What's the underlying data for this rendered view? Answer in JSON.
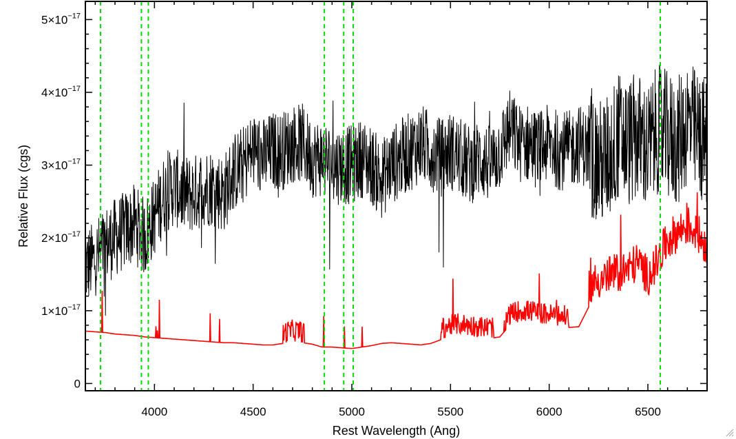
{
  "chart_data": {
    "type": "line",
    "title": "",
    "xlabel": "Rest Wavelength (Ang)",
    "ylabel": "Relative Flux (cgs)",
    "xlim": [
      3650,
      6800
    ],
    "ylim": [
      -1e-18,
      5.25e-17
    ],
    "x_ticks": [
      {
        "value": 4000,
        "label": "4000"
      },
      {
        "value": 4500,
        "label": "4500"
      },
      {
        "value": 5000,
        "label": "5000"
      },
      {
        "value": 5500,
        "label": "5500"
      },
      {
        "value": 6000,
        "label": "6000"
      },
      {
        "value": 6500,
        "label": "6500"
      }
    ],
    "y_ticks": [
      {
        "value": 0,
        "mantissa": "0",
        "exponent": ""
      },
      {
        "value": 1e-17,
        "mantissa": "1×10",
        "exponent": "−17"
      },
      {
        "value": 2e-17,
        "mantissa": "2×10",
        "exponent": "−17"
      },
      {
        "value": 3e-17,
        "mantissa": "3×10",
        "exponent": "−17"
      },
      {
        "value": 4e-17,
        "mantissa": "4×10",
        "exponent": "−17"
      },
      {
        "value": 5e-17,
        "mantissa": "5×10",
        "exponent": "−17"
      }
    ],
    "series": [
      {
        "color": "#000000",
        "x": [
          3650,
          3700,
          3750,
          3800,
          3850,
          3900,
          3950,
          4000,
          4050,
          4100,
          4150,
          4200,
          4250,
          4300,
          4350,
          4400,
          4450,
          4500,
          4550,
          4600,
          4650,
          4700,
          4750,
          4800,
          4850,
          4900,
          4950,
          5000,
          5050,
          5100,
          5150,
          5200,
          5250,
          5300,
          5350,
          5400,
          5450,
          5500,
          5550,
          5600,
          5650,
          5700,
          5750,
          5800,
          5850,
          5900,
          5950,
          6000,
          6050,
          6100,
          6150,
          6200,
          6250,
          6300,
          6350,
          6400,
          6450,
          6500,
          6550,
          6600,
          6650,
          6700,
          6750,
          6800
        ],
        "y": [
          1.6e-17,
          1.7e-17,
          1.9e-17,
          2e-17,
          2.1e-17,
          2.2e-17,
          2e-17,
          2.3e-17,
          2.6e-17,
          2.7e-17,
          2.6e-17,
          2.6e-17,
          2.7e-17,
          2.7e-17,
          2.6e-17,
          2.9e-17,
          3e-17,
          3.2e-17,
          3.1e-17,
          3.2e-17,
          3.2e-17,
          3.3e-17,
          3.3e-17,
          3.1e-17,
          3.1e-17,
          3e-17,
          3e-17,
          3e-17,
          3.1e-17,
          3e-17,
          2.8e-17,
          3e-17,
          3.1e-17,
          3.2e-17,
          3.3e-17,
          3.2e-17,
          3.1e-17,
          3.2e-17,
          3.1e-17,
          3e-17,
          3.1e-17,
          3e-17,
          3.2e-17,
          3.5e-17,
          3.3e-17,
          3.3e-17,
          3.2e-17,
          3.3e-17,
          3.2e-17,
          3.2e-17,
          3.3e-17,
          3.2e-17,
          3e-17,
          3.1e-17,
          3.4e-17,
          3.3e-17,
          3.4e-17,
          3.2e-17,
          3.5e-17,
          3.4e-17,
          3.3e-17,
          3.6e-17,
          3.4e-17,
          3.3e-17
        ]
      },
      {
        "color": "#ff0000",
        "x": [
          3650,
          3700,
          3750,
          3800,
          3850,
          3900,
          3950,
          4000,
          4050,
          4100,
          4150,
          4200,
          4250,
          4300,
          4350,
          4400,
          4450,
          4500,
          4550,
          4600,
          4650,
          4700,
          4750,
          4800,
          4850,
          4900,
          4950,
          5000,
          5050,
          5100,
          5150,
          5200,
          5250,
          5300,
          5350,
          5400,
          5450,
          5500,
          5550,
          5600,
          5650,
          5700,
          5750,
          5800,
          5850,
          5900,
          5950,
          6000,
          6050,
          6100,
          6150,
          6200,
          6250,
          6300,
          6350,
          6400,
          6450,
          6500,
          6550,
          6600,
          6650,
          6700,
          6750,
          6800
        ],
        "y": [
          7.2e-18,
          7.1e-18,
          7e-18,
          6.8e-18,
          6.7e-18,
          6.6e-18,
          6.4e-18,
          6.3e-18,
          6.2e-18,
          6.1e-18,
          6e-18,
          5.9e-18,
          5.8e-18,
          5.7e-18,
          5.6e-18,
          5.6e-18,
          5.5e-18,
          5.4e-18,
          5.3e-18,
          5.3e-18,
          5.5e-18,
          5.8e-18,
          5.6e-18,
          5.4e-18,
          5e-18,
          5e-18,
          4.9e-18,
          4.8e-18,
          5e-18,
          5.2e-18,
          5.5e-18,
          5.6e-18,
          5.5e-18,
          5.4e-18,
          5.3e-18,
          5.5e-18,
          6e-18,
          6.5e-18,
          6.7e-18,
          6.5e-18,
          6.3e-18,
          6.2e-18,
          6.4e-18,
          8e-18,
          8.5e-18,
          8.5e-18,
          8.2e-18,
          8e-18,
          7.8e-18,
          7.7e-18,
          7.8e-18,
          1.05e-17,
          1.15e-17,
          1.2e-17,
          1.25e-17,
          1.3e-17,
          1.4e-17,
          1.2e-17,
          1.4e-17,
          1.7e-17,
          1.8e-17,
          1.9e-17,
          1.8e-17,
          1.6e-17
        ]
      }
    ],
    "vertical_lines": {
      "color": "#00dd00",
      "style": "dashed",
      "x": [
        3727,
        3934,
        3969,
        4861,
        4959,
        5007,
        6563
      ]
    },
    "grid": false,
    "legend": "none"
  }
}
